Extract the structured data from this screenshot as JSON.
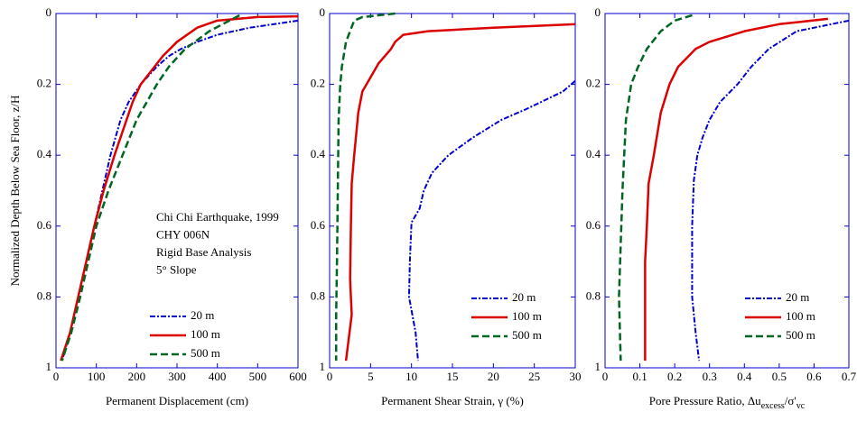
{
  "chart_data": [
    {
      "type": "line",
      "y_label": "Normalized Depth Below Sea Floor, z/H",
      "x_label": "Permanent Displacement (cm)",
      "xlim": [
        0,
        600
      ],
      "xticks": [
        0,
        100,
        200,
        300,
        400,
        500,
        600
      ],
      "ylim": [
        0,
        1
      ],
      "yticks": [
        0,
        0.2,
        0.4,
        0.6,
        0.8,
        1
      ],
      "y_reversed": true,
      "legend": "lower center",
      "annotations": [
        "Chi Chi Earthquake, 1999",
        "CHY 006N",
        "Rigid Base Analysis",
        "5° Slope"
      ],
      "series": [
        {
          "name": "20 m",
          "color": "#0000cc",
          "linestyle": "dashdot",
          "x": [
            600,
            480,
            400,
            350,
            310,
            280,
            250,
            210,
            180,
            160,
            135,
            115,
            95,
            75,
            55,
            35,
            15
          ],
          "values": [
            0.02,
            0.04,
            0.06,
            0.08,
            0.1,
            0.12,
            0.15,
            0.2,
            0.25,
            0.3,
            0.4,
            0.5,
            0.6,
            0.7,
            0.8,
            0.9,
            0.98
          ]
        },
        {
          "name": "100 m",
          "color": "#dd0000",
          "linestyle": "solid",
          "x": [
            600,
            500,
            450,
            400,
            350,
            300,
            265,
            210,
            190,
            175,
            145,
            118,
            95,
            75,
            55,
            35,
            12
          ],
          "values": [
            0.008,
            0.01,
            0.015,
            0.02,
            0.04,
            0.08,
            0.12,
            0.2,
            0.25,
            0.3,
            0.4,
            0.5,
            0.6,
            0.7,
            0.8,
            0.9,
            0.98
          ]
        },
        {
          "name": "500 m",
          "color": "#006622",
          "linestyle": "dashed",
          "x": [
            455,
            430,
            380,
            320,
            280,
            250,
            200,
            165,
            130,
            100,
            80,
            60,
            38,
            15
          ],
          "values": [
            0.005,
            0.02,
            0.05,
            0.1,
            0.15,
            0.2,
            0.3,
            0.4,
            0.5,
            0.6,
            0.7,
            0.8,
            0.9,
            0.98
          ]
        }
      ]
    },
    {
      "type": "line",
      "x_label": "Permanent Shear Strain, γ (%)",
      "xlim": [
        0,
        30
      ],
      "xticks": [
        0,
        5,
        10,
        15,
        20,
        25,
        30
      ],
      "ylim": [
        0,
        1
      ],
      "yticks": [
        0,
        0.2,
        0.4,
        0.6,
        0.8,
        1
      ],
      "y_reversed": true,
      "legend": "lower right",
      "series": [
        {
          "name": "20 m",
          "color": "#0000cc",
          "linestyle": "dashdot",
          "x": [
            30,
            28.5,
            24,
            21,
            17.5,
            14.5,
            12.5,
            11.5,
            11,
            10,
            9.8,
            9.7,
            10.5,
            10.8
          ],
          "values": [
            0.19,
            0.22,
            0.27,
            0.3,
            0.35,
            0.4,
            0.45,
            0.5,
            0.55,
            0.59,
            0.7,
            0.8,
            0.9,
            0.98
          ]
        },
        {
          "name": "100 m",
          "color": "#dd0000",
          "linestyle": "solid",
          "x": [
            30,
            20,
            12,
            9,
            8,
            7.5,
            6,
            5,
            4,
            3.5,
            3,
            2.7,
            2.6,
            2.5,
            2.7,
            2
          ],
          "values": [
            0.03,
            0.04,
            0.05,
            0.06,
            0.08,
            0.1,
            0.14,
            0.18,
            0.22,
            0.28,
            0.4,
            0.48,
            0.6,
            0.75,
            0.85,
            0.98
          ]
        },
        {
          "name": "500 m",
          "color": "#006622",
          "linestyle": "dashed",
          "x": [
            8,
            4,
            3,
            2.5,
            2,
            1.5,
            1.3,
            1.1,
            1,
            0.9,
            0.8,
            0.8
          ],
          "values": [
            0.0,
            0.01,
            0.02,
            0.05,
            0.08,
            0.15,
            0.2,
            0.3,
            0.5,
            0.7,
            0.85,
            0.98
          ]
        }
      ]
    },
    {
      "type": "line",
      "x_label": [
        "Pore Pressure Ratio, Δu",
        "excess",
        "/σ'",
        "vc"
      ],
      "xlim": [
        0,
        0.7
      ],
      "xticks": [
        0,
        0.1,
        0.2,
        0.3,
        0.4,
        0.5,
        0.6,
        0.7
      ],
      "ylim": [
        0,
        1
      ],
      "yticks": [
        0,
        0.2,
        0.4,
        0.6,
        0.8,
        1
      ],
      "y_reversed": true,
      "legend": "lower right",
      "series": [
        {
          "name": "20 m",
          "color": "#0000cc",
          "linestyle": "dashdot",
          "x": [
            0.7,
            0.65,
            0.55,
            0.47,
            0.42,
            0.38,
            0.33,
            0.3,
            0.28,
            0.265,
            0.255,
            0.25,
            0.25,
            0.26,
            0.27
          ],
          "values": [
            0.02,
            0.03,
            0.05,
            0.1,
            0.15,
            0.2,
            0.25,
            0.3,
            0.35,
            0.4,
            0.47,
            0.6,
            0.8,
            0.9,
            0.98
          ]
        },
        {
          "name": "100 m",
          "color": "#dd0000",
          "linestyle": "solid",
          "x": [
            0.64,
            0.5,
            0.4,
            0.3,
            0.26,
            0.21,
            0.185,
            0.16,
            0.14,
            0.125,
            0.12,
            0.115,
            0.115
          ],
          "values": [
            0.015,
            0.03,
            0.05,
            0.08,
            0.1,
            0.15,
            0.2,
            0.28,
            0.4,
            0.48,
            0.6,
            0.7,
            0.98
          ]
        },
        {
          "name": "500 m",
          "color": "#006622",
          "linestyle": "dashed",
          "x": [
            0.25,
            0.2,
            0.16,
            0.12,
            0.095,
            0.075,
            0.06,
            0.05,
            0.045,
            0.04,
            0.045
          ],
          "values": [
            0.005,
            0.02,
            0.05,
            0.1,
            0.15,
            0.2,
            0.3,
            0.5,
            0.65,
            0.8,
            0.98
          ]
        }
      ]
    }
  ]
}
